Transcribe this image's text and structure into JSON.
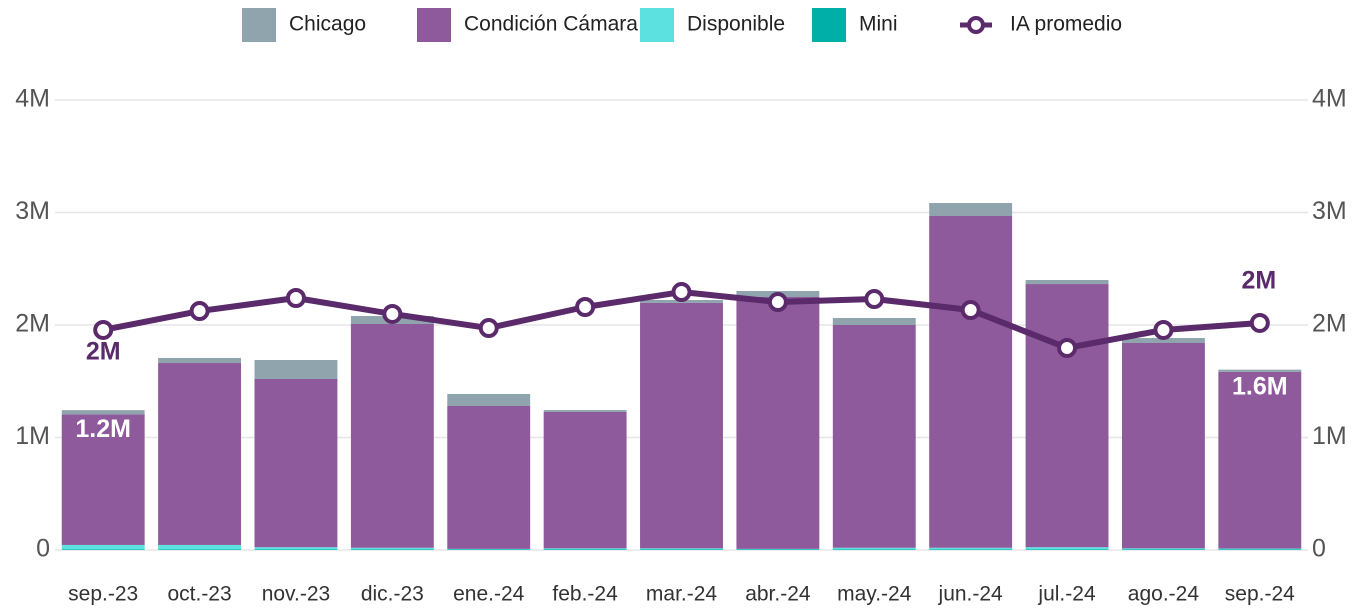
{
  "chart_data": {
    "type": "bar",
    "categories": [
      "sep.-23",
      "oct.-23",
      "nov.-23",
      "dic.-23",
      "ene.-24",
      "feb.-24",
      "mar.-24",
      "abr.-24",
      "may.-24",
      "jun.-24",
      "jul.-24",
      "ago.-24",
      "sep.-24"
    ],
    "series": [
      {
        "name": "Chicago",
        "color": "#90a4ae",
        "values": [
          38000,
          45000,
          169000,
          71000,
          107000,
          17000,
          26000,
          53000,
          62000,
          115000,
          36000,
          44000,
          20000
        ]
      },
      {
        "name": "Condición Cámara",
        "color": "#8e5a9b",
        "values": [
          1160000,
          1617000,
          1495000,
          1989000,
          1270000,
          1212000,
          2181000,
          2239000,
          1980000,
          2949000,
          2339000,
          1825000,
          1570000
        ],
        "value_labels": [
          "1.2M",
          null,
          null,
          null,
          null,
          null,
          null,
          null,
          null,
          null,
          null,
          null,
          "1.6M"
        ]
      },
      {
        "name": "Disponible",
        "color": "#5ce1e0",
        "values": [
          40000,
          40000,
          20000,
          15000,
          5000,
          10000,
          10000,
          5000,
          15000,
          15000,
          20000,
          10000,
          8000
        ]
      },
      {
        "name": "Mini",
        "color": "#00b0a8",
        "values": [
          5000,
          5000,
          5000,
          5000,
          5000,
          5000,
          5000,
          5000,
          5000,
          5000,
          5000,
          5000,
          5000
        ]
      },
      {
        "name": "IA promedio",
        "type": "line",
        "axis": "y2",
        "color": "#5a2a6a",
        "values": [
          1956000,
          2124000,
          2240000,
          2098000,
          1973000,
          2160000,
          2293000,
          2204000,
          2231000,
          2133000,
          1796000,
          1956000,
          2018000
        ],
        "value_labels": [
          "2M",
          null,
          null,
          null,
          null,
          null,
          null,
          null,
          null,
          null,
          null,
          null,
          "2M"
        ]
      }
    ],
    "ylim": [
      0,
      4000000
    ],
    "yticks": [
      0,
      {
        "value": 1000000,
        "label": "1M"
      },
      {
        "value": 2000000,
        "label": "2M"
      },
      {
        "value": 3000000,
        "label": "3M"
      },
      {
        "value": 4000000,
        "label": "4M"
      }
    ],
    "y2lim": [
      0,
      4000000
    ],
    "y2ticks": [
      0,
      {
        "value": 1000000,
        "label": "1M"
      },
      {
        "value": 2000000,
        "label": "2M"
      },
      {
        "value": 3000000,
        "label": "3M"
      },
      {
        "value": 4000000,
        "label": "4M"
      }
    ],
    "grid": true,
    "stacked": true,
    "legend": "top"
  }
}
